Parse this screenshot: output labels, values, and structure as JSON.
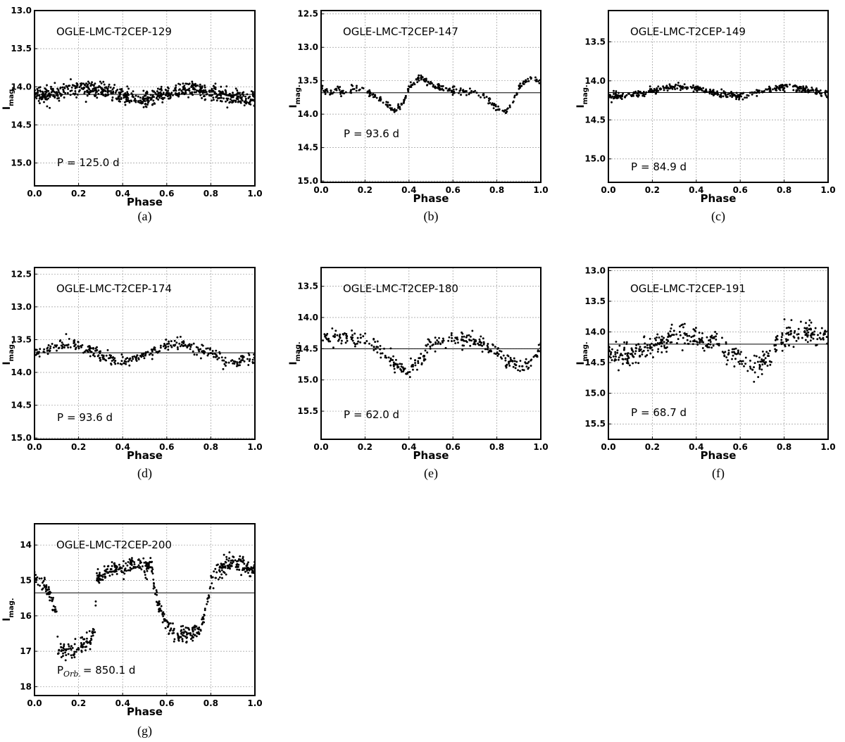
{
  "chart_data": [
    {
      "type": "scatter",
      "panel": "(a)",
      "star": "OGLE-LMC-T2CEP-129",
      "period_prefix": "P",
      "period_subscript": "",
      "period_value": "= 125.0 d",
      "xlabel": "Phase",
      "ylabel_main": "I",
      "ylabel_sub": "mag.",
      "xlim": [
        0.0,
        1.0
      ],
      "ylim": [
        13.0,
        15.3
      ],
      "y_inverted": true,
      "x_ticks": [
        "0.0",
        "0.2",
        "0.4",
        "0.6",
        "0.8",
        "1.0"
      ],
      "y_ticks": [
        "13.0",
        "13.5",
        "14.0",
        "14.5",
        "15.0"
      ],
      "mean_mag": 14.1,
      "curve": {
        "phase": [
          0.0,
          0.1,
          0.2,
          0.3,
          0.4,
          0.5,
          0.6,
          0.7,
          0.8,
          0.9,
          1.0
        ],
        "mag": [
          14.12,
          14.07,
          14.02,
          14.05,
          14.12,
          14.18,
          14.08,
          14.02,
          14.06,
          14.14,
          14.18
        ]
      },
      "scatter_amp": 0.09,
      "n_points": 720,
      "seed": 11
    },
    {
      "type": "scatter",
      "panel": "(b)",
      "star": "OGLE-LMC-T2CEP-147",
      "period_prefix": "P",
      "period_subscript": "",
      "period_value": "= 93.6 d",
      "xlabel": "Phase",
      "ylabel_main": "I",
      "ylabel_sub": "mag.",
      "xlim": [
        0.0,
        1.0
      ],
      "ylim": [
        12.45,
        15.02
      ],
      "y_inverted": true,
      "x_ticks": [
        "0.0",
        "0.2",
        "0.4",
        "0.6",
        "0.8",
        "1.0"
      ],
      "y_ticks": [
        "12.5",
        "13.0",
        "13.5",
        "14.0",
        "14.5",
        "15.0"
      ],
      "mean_mag": 13.68,
      "curve": {
        "phase": [
          0.0,
          0.05,
          0.08,
          0.1,
          0.15,
          0.2,
          0.25,
          0.3,
          0.33,
          0.37,
          0.4,
          0.45,
          0.5,
          0.6,
          0.7,
          0.75,
          0.8,
          0.84,
          0.87,
          0.9,
          0.95,
          1.0
        ],
        "mag": [
          13.6,
          13.7,
          13.62,
          13.68,
          13.62,
          13.65,
          13.72,
          13.85,
          13.95,
          13.85,
          13.6,
          13.45,
          13.55,
          13.65,
          13.68,
          13.75,
          13.9,
          13.98,
          13.85,
          13.6,
          13.45,
          13.52
        ]
      },
      "scatter_amp": 0.04,
      "n_points": 320,
      "seed": 22
    },
    {
      "type": "scatter",
      "panel": "(c)",
      "star": "OGLE-LMC-T2CEP-149",
      "period_prefix": "P",
      "period_subscript": "",
      "period_value": "= 84.9 d",
      "xlabel": "Phase",
      "ylabel_main": "I",
      "ylabel_sub": "mag.",
      "xlim": [
        0.0,
        1.0
      ],
      "ylim": [
        13.1,
        15.3
      ],
      "y_inverted": true,
      "x_ticks": [
        "0.0",
        "0.2",
        "0.4",
        "0.6",
        "0.8",
        "1.0"
      ],
      "y_ticks": [
        "13.5",
        "14.0",
        "14.5",
        "15.0"
      ],
      "mean_mag": 14.15,
      "curve": {
        "phase": [
          0.0,
          0.1,
          0.2,
          0.3,
          0.4,
          0.5,
          0.6,
          0.7,
          0.8,
          0.9,
          1.0
        ],
        "mag": [
          14.2,
          14.19,
          14.13,
          14.07,
          14.1,
          14.17,
          14.2,
          14.13,
          14.07,
          14.11,
          14.17
        ]
      },
      "scatter_amp": 0.035,
      "n_points": 420,
      "seed": 33
    },
    {
      "type": "scatter",
      "panel": "(d)",
      "star": "OGLE-LMC-T2CEP-174",
      "period_prefix": "P",
      "period_subscript": "",
      "period_value": "= 93.6 d",
      "xlabel": "Phase",
      "ylabel_main": "I",
      "ylabel_sub": "mag.",
      "xlim": [
        0.0,
        1.0
      ],
      "ylim": [
        12.4,
        15.02
      ],
      "y_inverted": true,
      "x_ticks": [
        "0.0",
        "0.2",
        "0.4",
        "0.6",
        "0.8",
        "1.0"
      ],
      "y_ticks": [
        "12.5",
        "13.0",
        "13.5",
        "14.0",
        "14.5",
        "15.0"
      ],
      "mean_mag": 13.7,
      "curve": {
        "phase": [
          0.0,
          0.1,
          0.15,
          0.2,
          0.3,
          0.4,
          0.5,
          0.6,
          0.65,
          0.7,
          0.8,
          0.9,
          1.0
        ],
        "mag": [
          13.72,
          13.62,
          13.55,
          13.6,
          13.75,
          13.85,
          13.72,
          13.58,
          13.52,
          13.6,
          13.7,
          13.85,
          13.8
        ]
      },
      "scatter_amp": 0.08,
      "n_points": 330,
      "seed": 44
    },
    {
      "type": "scatter",
      "panel": "(e)",
      "star": "OGLE-LMC-T2CEP-180",
      "period_prefix": "P",
      "period_subscript": "",
      "period_value": "= 62.0 d",
      "xlabel": "Phase",
      "ylabel_main": "I",
      "ylabel_sub": "mag.",
      "xlim": [
        0.0,
        1.0
      ],
      "ylim": [
        13.2,
        15.95
      ],
      "y_inverted": true,
      "x_ticks": [
        "0.0",
        "0.2",
        "0.4",
        "0.6",
        "0.8",
        "1.0"
      ],
      "y_ticks": [
        "13.5",
        "14.0",
        "14.5",
        "15.0",
        "15.5"
      ],
      "mean_mag": 14.5,
      "curve": {
        "phase": [
          0.0,
          0.1,
          0.2,
          0.25,
          0.3,
          0.35,
          0.4,
          0.45,
          0.5,
          0.55,
          0.6,
          0.7,
          0.8,
          0.85,
          0.9,
          0.95,
          1.0
        ],
        "mag": [
          14.35,
          14.32,
          14.35,
          14.45,
          14.65,
          14.8,
          14.85,
          14.7,
          14.45,
          14.35,
          14.32,
          14.38,
          14.55,
          14.7,
          14.8,
          14.75,
          14.5
        ]
      },
      "scatter_amp": 0.1,
      "n_points": 330,
      "seed": 55
    },
    {
      "type": "scatter",
      "panel": "(f)",
      "star": "OGLE-LMC-T2CEP-191",
      "period_prefix": "P",
      "period_subscript": "",
      "period_value": "= 68.7 d",
      "xlabel": "Phase",
      "ylabel_main": "I",
      "ylabel_sub": "mag.",
      "xlim": [
        0.0,
        1.0
      ],
      "ylim": [
        12.95,
        15.75
      ],
      "y_inverted": true,
      "x_ticks": [
        "0.0",
        "0.2",
        "0.4",
        "0.6",
        "0.8",
        "1.0"
      ],
      "y_ticks": [
        "13.0",
        "13.5",
        "14.0",
        "14.5",
        "15.0",
        "15.5"
      ],
      "mean_mag": 14.2,
      "curve": {
        "phase": [
          0.0,
          0.1,
          0.2,
          0.3,
          0.4,
          0.5,
          0.55,
          0.6,
          0.65,
          0.7,
          0.75,
          0.8,
          0.9,
          1.0
        ],
        "mag": [
          14.35,
          14.4,
          14.2,
          14.05,
          14.1,
          14.2,
          14.35,
          14.45,
          14.55,
          14.5,
          14.3,
          14.1,
          14.0,
          14.05
        ]
      },
      "scatter_amp": 0.16,
      "n_points": 430,
      "seed": 66
    },
    {
      "type": "scatter",
      "panel": "(g)",
      "star": "OGLE-LMC-T2CEP-200",
      "period_prefix": "P",
      "period_subscript": "Orb.",
      "period_value": "= 850.1 d",
      "xlabel": "Phase",
      "ylabel_main": "I",
      "ylabel_sub": "mag.",
      "xlim": [
        0.0,
        1.0
      ],
      "ylim": [
        13.4,
        18.25
      ],
      "y_inverted": true,
      "x_ticks": [
        "0.0",
        "0.2",
        "0.4",
        "0.6",
        "0.8",
        "1.0"
      ],
      "y_ticks": [
        "14",
        "15",
        "16",
        "17",
        "18"
      ],
      "mean_mag": 15.35,
      "curve": {
        "phase": [
          0.0,
          0.03,
          0.06,
          0.08,
          0.1,
          0.105,
          0.15,
          0.2,
          0.23,
          0.275,
          0.28,
          0.35,
          0.45,
          0.53,
          0.56,
          0.6,
          0.65,
          0.7,
          0.75,
          0.78,
          0.8,
          0.85,
          0.9,
          0.95,
          1.0
        ],
        "mag": [
          14.9,
          15.1,
          15.2,
          15.6,
          16.0,
          16.9,
          17.0,
          16.95,
          16.8,
          16.5,
          15.0,
          14.65,
          14.55,
          14.6,
          15.7,
          16.3,
          16.5,
          16.55,
          16.4,
          15.8,
          15.0,
          14.6,
          14.5,
          14.6,
          14.65
        ]
      },
      "scatter_amp": 0.2,
      "n_points": 620,
      "seed": 77
    }
  ]
}
